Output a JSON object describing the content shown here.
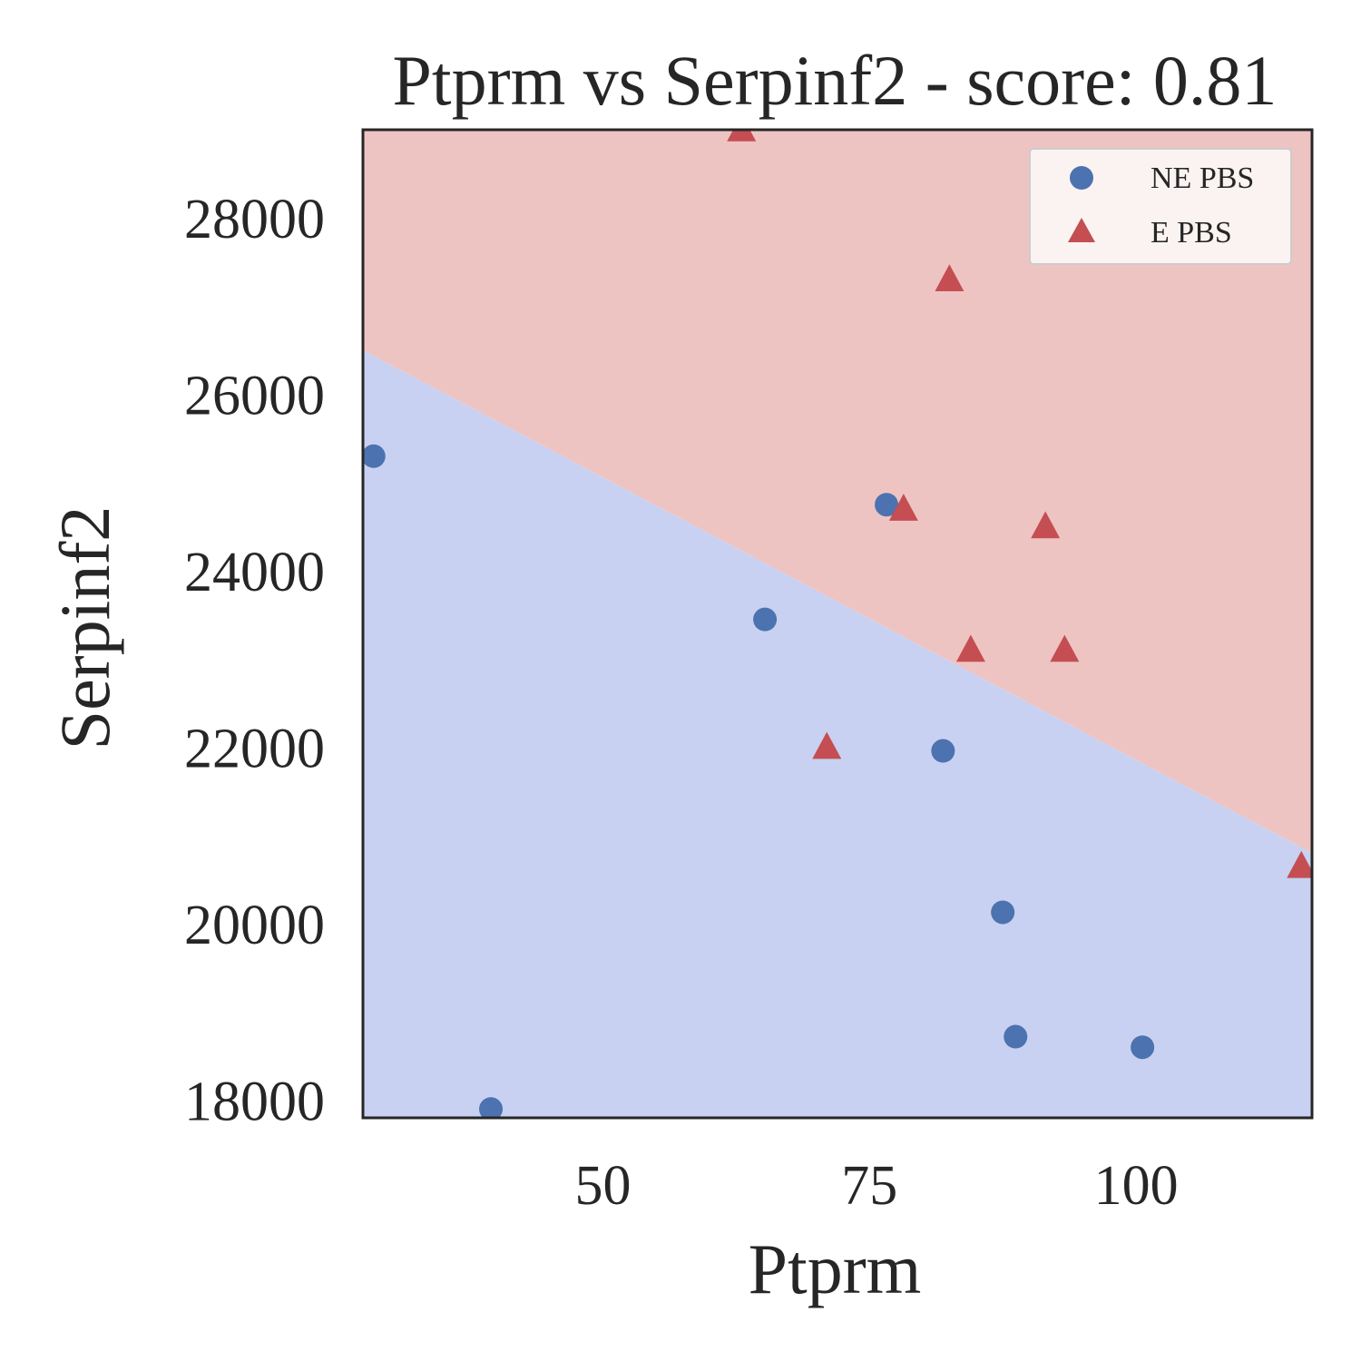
{
  "chart_data": {
    "type": "scatter",
    "title": "Ptprm vs Serpinf2 - score: 0.81",
    "xlabel": "Ptprm",
    "ylabel": "Serpinf2",
    "xlim": [
      27.5,
      116.5
    ],
    "ylim": [
      17800,
      29000
    ],
    "x_ticks": [
      50,
      75,
      100
    ],
    "y_ticks": [
      18000,
      20000,
      22000,
      24000,
      26000,
      28000
    ],
    "grid": false,
    "legend_position": "top-right",
    "decision_regions": {
      "boundary": [
        [
          27.5,
          26500
        ],
        [
          116.5,
          20800
        ]
      ],
      "above_color": "#eec4c3",
      "below_color": "#c8d1f1",
      "above_class": "E PBS",
      "below_class": "NE PBS"
    },
    "series": [
      {
        "name": "NE PBS",
        "marker": "circle",
        "color": "#4c72b0",
        "points": [
          [
            28.5,
            25300
          ],
          [
            39.5,
            17900
          ],
          [
            65.2,
            23450
          ],
          [
            76.6,
            24750
          ],
          [
            81.9,
            21960
          ],
          [
            87.5,
            20130
          ],
          [
            88.7,
            18720
          ],
          [
            100.6,
            18600
          ]
        ]
      },
      {
        "name": "E PBS",
        "marker": "triangle",
        "color": "#c44e52",
        "points": [
          [
            63.0,
            29000
          ],
          [
            82.5,
            27300
          ],
          [
            78.2,
            24700
          ],
          [
            91.5,
            24500
          ],
          [
            84.5,
            23100
          ],
          [
            93.3,
            23100
          ],
          [
            71.0,
            22000
          ],
          [
            115.5,
            20650
          ]
        ]
      }
    ]
  }
}
